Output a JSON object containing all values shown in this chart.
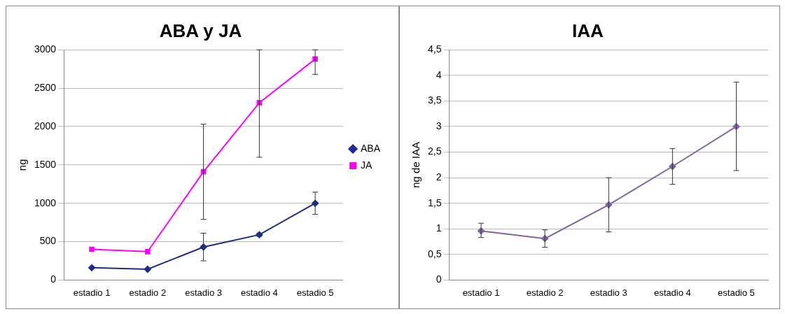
{
  "chart_data": [
    {
      "type": "line",
      "title": "ABA y JA",
      "ylabel": "ng",
      "categories": [
        "estadio 1",
        "estadio 2",
        "estadio 3",
        "estadio 4",
        "estadio 5"
      ],
      "series": [
        {
          "name": "ABA",
          "color": "#1f2a8c",
          "marker": "diamond",
          "values": [
            160,
            140,
            430,
            590,
            1000
          ],
          "errors": [
            null,
            null,
            [
              250,
              610
            ],
            [
              570,
              610
            ],
            [
              855,
              1145
            ]
          ]
        },
        {
          "name": "JA",
          "color": "#ff00ff",
          "marker": "square",
          "values": [
            400,
            370,
            1410,
            2310,
            2880
          ],
          "errors": [
            null,
            null,
            [
              790,
              2030
            ],
            [
              1600,
              3000
            ],
            [
              2680,
              3000
            ]
          ]
        }
      ],
      "ylim": [
        0,
        3000
      ],
      "yticks": [
        0,
        500,
        1000,
        1500,
        2000,
        2500,
        3000
      ],
      "grid": "y",
      "legend": "right"
    },
    {
      "type": "line",
      "title": "IAA",
      "ylabel": "ng de IAA",
      "categories": [
        "estadio 1",
        "estadio 2",
        "estadio 3",
        "estadio 4",
        "estadio 5"
      ],
      "series": [
        {
          "color": "#8064a2",
          "values": [
            0.96,
            0.81,
            1.47,
            2.22,
            3.0
          ],
          "errors": [
            [
              0.83,
              1.11
            ],
            [
              0.64,
              0.98
            ],
            [
              0.94,
              2.0
            ],
            [
              1.87,
              2.57
            ],
            [
              2.14,
              3.87
            ]
          ]
        }
      ],
      "ylim": [
        0,
        4.5
      ],
      "yticks": [
        0,
        {
          "value": 0.5,
          "label": "0,5"
        },
        1,
        {
          "value": 1.5,
          "label": "1,5"
        },
        2,
        {
          "value": 2.5,
          "label": "2,5"
        },
        3,
        {
          "value": 3.5,
          "label": "3,5"
        },
        4,
        {
          "value": 4.5,
          "label": "4,5"
        }
      ],
      "grid": "y",
      "legend": false,
      "marker": "diamond"
    }
  ]
}
